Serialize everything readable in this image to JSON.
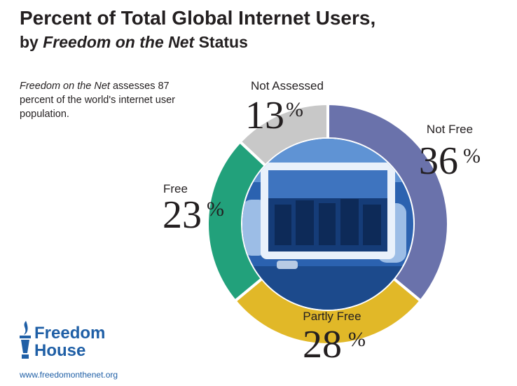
{
  "header": {
    "title": "Percent of Total Global Internet Users,",
    "subtitle_prefix": "by ",
    "subtitle_italic": "Freedom on the Net",
    "subtitle_suffix": " Status"
  },
  "note": {
    "italic": "Freedom on the Net",
    "text": " assesses 87 percent of the world's internet user population."
  },
  "chart_data": {
    "type": "pie",
    "title": "Percent of Total Global Internet Users, by Freedom on the Net Status",
    "categories": [
      "Not Free",
      "Partly Free",
      "Free",
      "Not Assessed"
    ],
    "values": [
      36,
      28,
      23,
      13
    ],
    "value_labels": [
      "36",
      "28",
      "23",
      "13"
    ],
    "unit": "%",
    "colors": [
      "#6a72ab",
      "#e1b828",
      "#22a17b",
      "#c8c8c8"
    ],
    "center_image": "photo of a tablet capturing riot police, blue duotone"
  },
  "footer": {
    "brand_line1": "Freedom",
    "brand_line2": "House",
    "url": "www.freedomonthenet.org",
    "brand_color": "#1f5fa6"
  }
}
